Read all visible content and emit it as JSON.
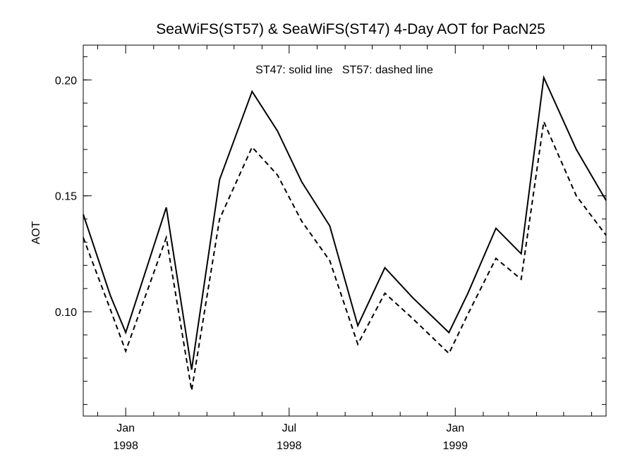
{
  "chart_data": {
    "type": "line",
    "title": "SeaWiFS(ST57) & SeaWiFS(ST47) 4-Day AOT for PacN25",
    "ylabel": "AOT",
    "xlabel": "",
    "annotation": "ST47: solid line   ST57: dashed line",
    "ylim": [
      0.055,
      0.215
    ],
    "xlim": [
      "1997-11-15",
      "1999-06-17"
    ],
    "yticks": [
      {
        "value": 0.1,
        "label": "0.10"
      },
      {
        "value": 0.15,
        "label": "0.15"
      },
      {
        "value": 0.2,
        "label": "0.20"
      }
    ],
    "yminor_step": 0.01,
    "xticks": [
      {
        "date": "1998-01-01",
        "month": "Jan",
        "year": "1998"
      },
      {
        "date": "1998-07-01",
        "month": "Jul",
        "year": "1998"
      },
      {
        "date": "1999-01-01",
        "month": "Jan",
        "year": "1999"
      }
    ],
    "xminor_dates": [
      "1997-12-01",
      "1998-02-01",
      "1998-03-01",
      "1998-04-01",
      "1998-05-01",
      "1998-06-01",
      "1998-08-01",
      "1998-09-01",
      "1998-10-01",
      "1998-11-01",
      "1998-12-01",
      "1999-02-01",
      "1999-03-01",
      "1999-04-01",
      "1999-05-01",
      "1999-06-01"
    ],
    "series": [
      {
        "name": "ST47",
        "style": "solid",
        "points": [
          {
            "x": "1997-11-15",
            "y": 0.142
          },
          {
            "x": "1997-12-15",
            "y": 0.107
          },
          {
            "x": "1998-01-01",
            "y": 0.091
          },
          {
            "x": "1998-02-15",
            "y": 0.145
          },
          {
            "x": "1998-03-15",
            "y": 0.075
          },
          {
            "x": "1998-04-15",
            "y": 0.157
          },
          {
            "x": "1998-05-21",
            "y": 0.195
          },
          {
            "x": "1998-06-18",
            "y": 0.178
          },
          {
            "x": "1998-07-15",
            "y": 0.156
          },
          {
            "x": "1998-08-15",
            "y": 0.137
          },
          {
            "x": "1998-09-15",
            "y": 0.094
          },
          {
            "x": "1998-10-15",
            "y": 0.119
          },
          {
            "x": "1998-11-15",
            "y": 0.106
          },
          {
            "x": "1998-12-25",
            "y": 0.091
          },
          {
            "x": "1999-01-15",
            "y": 0.108
          },
          {
            "x": "1999-02-15",
            "y": 0.136
          },
          {
            "x": "1999-03-15",
            "y": 0.125
          },
          {
            "x": "1999-04-09",
            "y": 0.201
          },
          {
            "x": "1999-05-15",
            "y": 0.17
          },
          {
            "x": "1999-06-17",
            "y": 0.148
          }
        ]
      },
      {
        "name": "ST57",
        "style": "dashed",
        "points": [
          {
            "x": "1997-11-15",
            "y": 0.132
          },
          {
            "x": "1997-12-15",
            "y": 0.101
          },
          {
            "x": "1998-01-01",
            "y": 0.083
          },
          {
            "x": "1998-02-15",
            "y": 0.132
          },
          {
            "x": "1998-03-15",
            "y": 0.066
          },
          {
            "x": "1998-04-15",
            "y": 0.14
          },
          {
            "x": "1998-05-21",
            "y": 0.171
          },
          {
            "x": "1998-06-18",
            "y": 0.159
          },
          {
            "x": "1998-07-15",
            "y": 0.139
          },
          {
            "x": "1998-08-15",
            "y": 0.122
          },
          {
            "x": "1998-09-15",
            "y": 0.086
          },
          {
            "x": "1998-10-15",
            "y": 0.108
          },
          {
            "x": "1998-11-15",
            "y": 0.097
          },
          {
            "x": "1998-12-25",
            "y": 0.082
          },
          {
            "x": "1999-01-15",
            "y": 0.099
          },
          {
            "x": "1999-02-15",
            "y": 0.123
          },
          {
            "x": "1999-03-15",
            "y": 0.114
          },
          {
            "x": "1999-04-09",
            "y": 0.182
          },
          {
            "x": "1999-05-15",
            "y": 0.15
          },
          {
            "x": "1999-06-17",
            "y": 0.133
          }
        ]
      }
    ],
    "grid": false,
    "colors": {
      "line": "#000000",
      "axis": "#000000",
      "background": "#ffffff"
    }
  }
}
